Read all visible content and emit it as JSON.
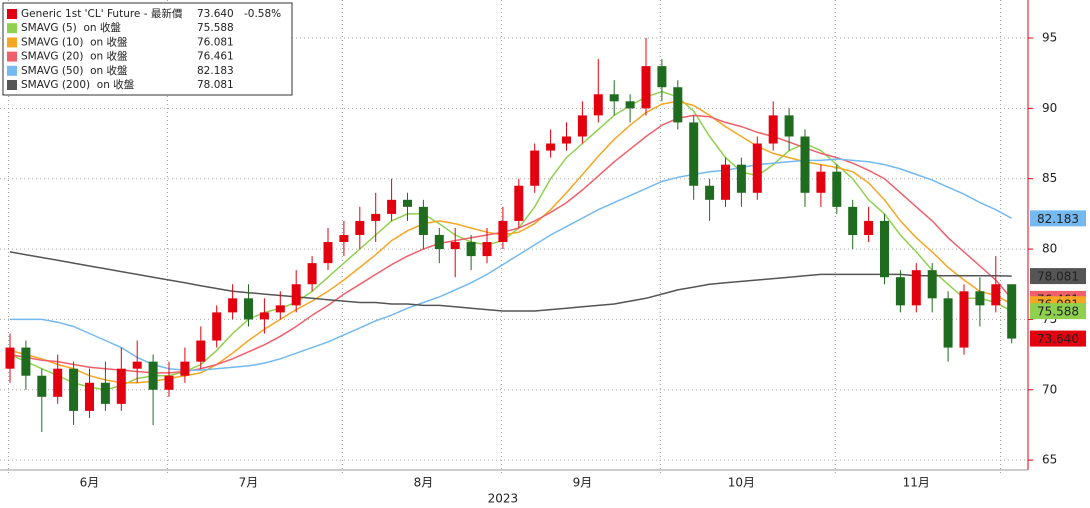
{
  "chart_data": {
    "type": "candlestick",
    "categories": [
      null,
      null,
      null,
      null,
      null,
      "6月",
      null,
      null,
      null,
      null,
      null,
      null,
      null,
      null,
      null,
      "7月",
      null,
      null,
      null,
      null,
      null,
      null,
      null,
      null,
      null,
      null,
      "8月",
      null,
      null,
      null,
      null,
      null,
      null,
      null,
      null,
      null,
      "9月",
      null,
      null,
      null,
      null,
      null,
      null,
      null,
      null,
      null,
      "10月",
      null,
      null,
      null,
      null,
      null,
      null,
      null,
      null,
      null,
      null,
      "11月",
      null,
      null,
      null,
      null,
      null,
      null
    ],
    "year_label": "2023",
    "candles": {
      "name": "Generic 1st 'CL' Future - 最新價",
      "last_label": "73.640",
      "change": "-0.58%",
      "up_color": "#e3000f",
      "down_color": "#1f6b1f",
      "open": [
        71.5,
        73,
        71,
        69.5,
        71.5,
        68.5,
        70.5,
        69,
        71.5,
        72,
        70,
        71,
        72,
        73.5,
        75.5,
        76.5,
        75,
        75.5,
        76,
        77.5,
        79,
        80.5,
        81,
        82,
        82.5,
        83.5,
        83,
        81,
        80,
        80.5,
        79.5,
        80.5,
        82,
        84.5,
        87,
        87.5,
        88,
        89.5,
        91,
        90.5,
        90,
        93,
        91.5,
        89,
        84.5,
        83.5,
        86,
        84,
        87.5,
        89.5,
        88,
        84,
        85.5,
        83,
        81,
        82,
        78,
        76,
        78.5,
        76.5,
        73,
        77,
        76,
        77.5
      ],
      "high": [
        74,
        73.5,
        71.5,
        72.5,
        72,
        71.5,
        72,
        73,
        73.5,
        72.5,
        72,
        73,
        74.5,
        76,
        77.5,
        77.5,
        76.5,
        77,
        78.5,
        79.5,
        81.5,
        82,
        83,
        84,
        85,
        84,
        83.5,
        81.5,
        81.5,
        81,
        81.5,
        83,
        85,
        87.5,
        88.5,
        89,
        90.5,
        93.5,
        92,
        91,
        95,
        93.5,
        92,
        89.5,
        85,
        86.5,
        86.5,
        88,
        90.5,
        90,
        88.5,
        86,
        86,
        83.5,
        83,
        82.5,
        78.5,
        79,
        79,
        77,
        77.5,
        78,
        79.5,
        77.5
      ],
      "low": [
        70.5,
        70,
        67,
        69,
        67.5,
        68,
        68.5,
        68.5,
        70.5,
        67.5,
        69.5,
        70.5,
        71.5,
        73,
        75,
        74.5,
        74,
        75,
        75.5,
        77,
        78.5,
        79.5,
        80,
        80.5,
        82,
        82,
        80,
        79,
        78,
        78.5,
        79,
        80,
        81.5,
        84,
        86.5,
        87,
        87.5,
        89,
        89.5,
        89,
        89.5,
        90.5,
        88.5,
        83.5,
        82,
        83,
        83,
        83.5,
        87,
        87,
        83,
        83,
        82.5,
        80,
        80.5,
        77.5,
        75.5,
        75.5,
        75.5,
        72,
        72.5,
        74.5,
        75.5,
        73.3
      ],
      "close": [
        73,
        71,
        69.5,
        71.5,
        68.5,
        70.5,
        69,
        71.5,
        72,
        70,
        71,
        72,
        73.5,
        75.5,
        76.5,
        75,
        75.5,
        76,
        77.5,
        79,
        80.5,
        81,
        82,
        82.5,
        83.5,
        83,
        81,
        80,
        80.5,
        79.5,
        80.5,
        82,
        84.5,
        87,
        87.5,
        88,
        89.5,
        91,
        90.5,
        90,
        93,
        91.5,
        89,
        84.5,
        83.5,
        86,
        84,
        87.5,
        89.5,
        88,
        84,
        85.5,
        83,
        81,
        82,
        78,
        76,
        78.5,
        76.5,
        73,
        77,
        76,
        77.5,
        73.64
      ]
    },
    "series": [
      {
        "name": "SMAVG (5)  on 收盤",
        "color": "#8fd14f",
        "values": [
          72.5,
          72,
          71.5,
          71,
          70.5,
          70.2,
          70,
          70.3,
          70.8,
          71,
          71,
          71.3,
          71.8,
          72.8,
          74,
          75,
          75.5,
          75.8,
          76.2,
          77,
          78,
          79,
          80,
          81,
          82,
          82.5,
          82.5,
          81.8,
          81,
          80.5,
          80.3,
          80.6,
          81.5,
          83,
          85,
          86.5,
          87.5,
          88.5,
          89.5,
          90.2,
          90.8,
          91.2,
          90.8,
          89.8,
          88,
          86.5,
          85.5,
          85.2,
          86,
          87,
          87.5,
          87,
          86,
          85,
          83.5,
          82.5,
          81,
          79.8,
          78.5,
          77.5,
          76.5,
          76.5,
          76.2,
          75.588
        ]
      },
      {
        "name": "SMAVG (10)  on 收盤",
        "color": "#f5a623",
        "values": [
          72.8,
          72.5,
          72.2,
          71.8,
          71.5,
          71,
          70.7,
          70.5,
          70.5,
          70.6,
          70.8,
          71,
          71.2,
          71.8,
          72.6,
          73.5,
          74.3,
          75,
          75.7,
          76.3,
          77,
          77.8,
          78.7,
          79.6,
          80.6,
          81.3,
          81.8,
          82,
          81.8,
          81.5,
          81.2,
          81,
          81.2,
          81.8,
          82.8,
          84,
          85.3,
          86.6,
          87.8,
          88.8,
          89.7,
          90.3,
          90.5,
          90.2,
          89.5,
          88.7,
          88,
          87.3,
          86.8,
          86.5,
          86.2,
          86,
          85.8,
          85.5,
          84.7,
          83.5,
          82,
          80.8,
          79.8,
          78.7,
          77.8,
          77,
          76.7,
          76.081
        ]
      },
      {
        "name": "SMAVG (20)  on 收盤",
        "color": "#f0606a",
        "values": [
          72.5,
          72.3,
          72.1,
          72,
          71.8,
          71.6,
          71.5,
          71.4,
          71.3,
          71.2,
          71.2,
          71.3,
          71.5,
          71.8,
          72.2,
          72.7,
          73.2,
          73.8,
          74.5,
          75.3,
          76,
          76.8,
          77.5,
          78.2,
          78.9,
          79.5,
          80,
          80.4,
          80.6,
          80.8,
          81,
          81.2,
          81.5,
          82,
          82.6,
          83.3,
          84.2,
          85.2,
          86.2,
          87.1,
          88,
          88.8,
          89.3,
          89.5,
          89.4,
          89,
          88.7,
          88.3,
          88,
          87.6,
          87.2,
          86.8,
          86.5,
          86.1,
          85.6,
          85,
          84,
          83,
          82,
          80.8,
          79.8,
          78.8,
          77.8,
          76.461
        ]
      },
      {
        "name": "SMAVG (50)  on 收盤",
        "color": "#74b9f0",
        "values": [
          75,
          75,
          75,
          74.8,
          74.5,
          74,
          73.5,
          73,
          72.3,
          71.8,
          71.5,
          71.4,
          71.4,
          71.5,
          71.6,
          71.7,
          71.9,
          72.2,
          72.6,
          73,
          73.4,
          73.9,
          74.4,
          74.9,
          75.3,
          75.8,
          76.2,
          76.6,
          77.1,
          77.6,
          78.2,
          78.9,
          79.6,
          80.3,
          81,
          81.6,
          82.2,
          82.8,
          83.3,
          83.8,
          84.3,
          84.8,
          85.1,
          85.3,
          85.5,
          85.6,
          85.8,
          86,
          86.1,
          86.2,
          86.3,
          86.3,
          86.4,
          86.3,
          86.2,
          86,
          85.7,
          85.3,
          84.9,
          84.4,
          83.9,
          83.3,
          82.8,
          82.183
        ]
      },
      {
        "name": "SMAVG (200)  on 收盤",
        "color": "#555555",
        "values": [
          79.8,
          79.6,
          79.4,
          79.2,
          79,
          78.8,
          78.6,
          78.4,
          78.2,
          78,
          77.8,
          77.6,
          77.4,
          77.2,
          77,
          76.9,
          76.8,
          76.7,
          76.6,
          76.5,
          76.4,
          76.3,
          76.2,
          76.2,
          76.1,
          76.1,
          76,
          76,
          75.9,
          75.8,
          75.7,
          75.6,
          75.6,
          75.6,
          75.7,
          75.8,
          75.9,
          76,
          76.1,
          76.3,
          76.5,
          76.8,
          77.1,
          77.3,
          77.5,
          77.6,
          77.7,
          77.8,
          77.9,
          78,
          78.1,
          78.2,
          78.2,
          78.2,
          78.2,
          78.2,
          78.2,
          78.1,
          78.1,
          78.1,
          78.1,
          78.1,
          78.1,
          78.081
        ]
      }
    ],
    "ylim": [
      64.3,
      97.7
    ],
    "yticks": [
      65,
      70,
      75,
      80,
      85,
      90,
      95
    ],
    "grid": true,
    "axis_color": "#e3000f"
  }
}
